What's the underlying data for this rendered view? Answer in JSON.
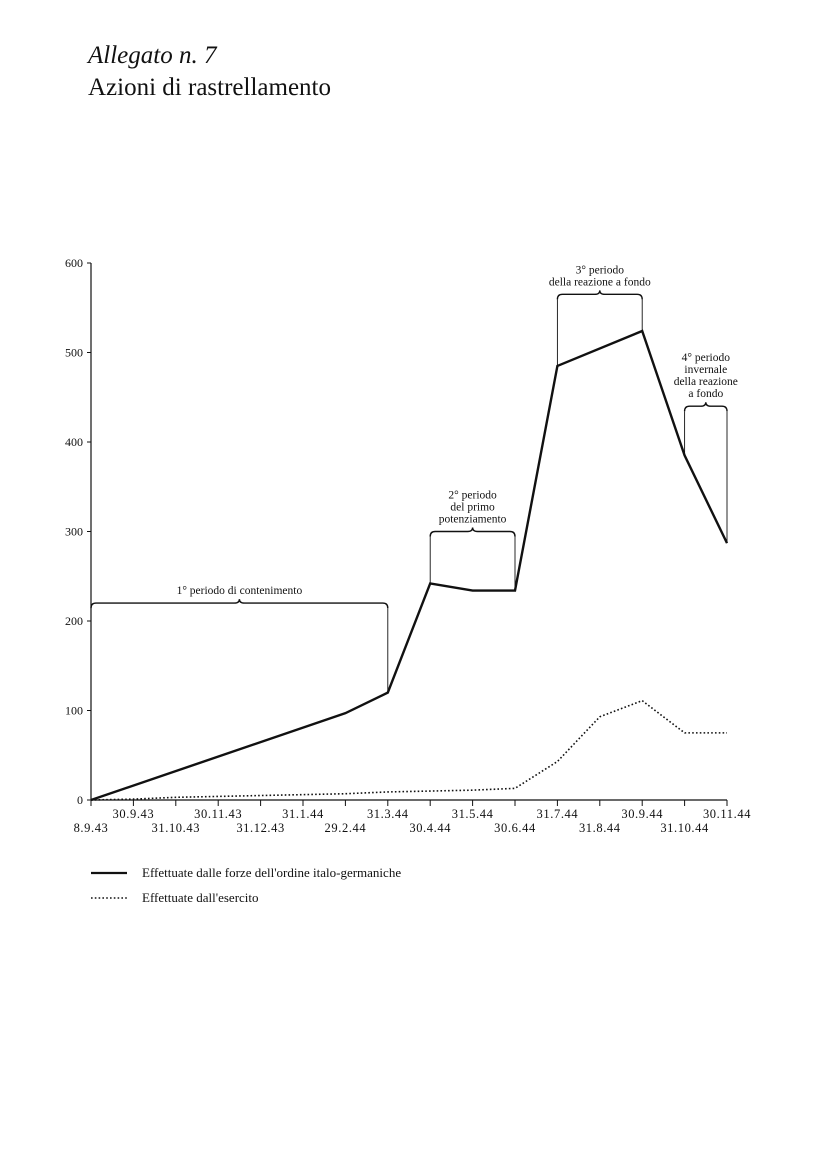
{
  "header": {
    "attachment": "Allegato n. 7",
    "title": "Azioni di rastrellamento"
  },
  "chart_data": {
    "type": "line",
    "title": "Azioni di rastrellamento",
    "xlabel": "",
    "ylabel": "",
    "ylim": [
      0,
      600
    ],
    "yticks": [
      {
        "value": 0,
        "label": "0"
      },
      {
        "value": 100,
        "label": "100"
      },
      {
        "value": 200,
        "label": "200"
      },
      {
        "value": 300,
        "label": "300"
      },
      {
        "value": 400,
        "label": "400"
      },
      {
        "value": 500,
        "label": "500"
      },
      {
        "value": 600,
        "label": "600"
      }
    ],
    "categories": [
      "8.9.43",
      "30.9.43",
      "31.10.43",
      "30.11.43",
      "31.12.43",
      "31.1.44",
      "29.2.44",
      "31.3.44",
      "30.4.44",
      "31.5.44",
      "30.6.44",
      "31.7.44",
      "31.8.44",
      "30.9.44",
      "31.10.44",
      "30.11.44"
    ],
    "series": [
      {
        "name": "Effettuate dalle forze dell'ordine italo-germaniche",
        "style": "solid",
        "points": [
          [
            "8.9.43",
            0
          ],
          [
            "29.2.44",
            97
          ],
          [
            "31.3.44",
            120
          ],
          [
            "30.4.44",
            242
          ],
          [
            "31.5.44",
            234
          ],
          [
            "30.6.44",
            234
          ],
          [
            "31.7.44",
            485
          ],
          [
            "30.9.44",
            524
          ],
          [
            "31.10.44",
            385
          ],
          [
            "30.11.44",
            287
          ]
        ]
      },
      {
        "name": "Effettuate dall'esercito",
        "style": "dotted",
        "points": [
          [
            "8.9.43",
            0
          ],
          [
            "30.9.43",
            1
          ],
          [
            "31.10.43",
            3
          ],
          [
            "30.11.43",
            4
          ],
          [
            "31.12.43",
            5
          ],
          [
            "31.1.44",
            6
          ],
          [
            "29.2.44",
            7
          ],
          [
            "31.3.44",
            9
          ],
          [
            "30.4.44",
            10
          ],
          [
            "31.5.44",
            11
          ],
          [
            "30.6.44",
            13
          ],
          [
            "31.7.44",
            43
          ],
          [
            "31.8.44",
            93
          ],
          [
            "30.9.44",
            111
          ],
          [
            "31.10.44",
            75
          ],
          [
            "30.11.44",
            75
          ]
        ]
      }
    ],
    "annotations": [
      {
        "from": "8.9.43",
        "to": "31.3.44",
        "y": 220,
        "lines": [
          "1° periodo di contenimento"
        ]
      },
      {
        "from": "30.4.44",
        "to": "30.6.44",
        "y": 300,
        "lines": [
          "2° periodo",
          "del primo",
          "potenziamento"
        ]
      },
      {
        "from": "31.7.44",
        "to": "30.9.44",
        "y": 565,
        "lines": [
          "3° periodo",
          "della reazione a fondo"
        ]
      },
      {
        "from": "31.10.44",
        "to": "30.11.44",
        "y": 440,
        "lines": [
          "4° periodo",
          "invernale",
          "della reazione",
          "a fondo"
        ]
      }
    ]
  }
}
